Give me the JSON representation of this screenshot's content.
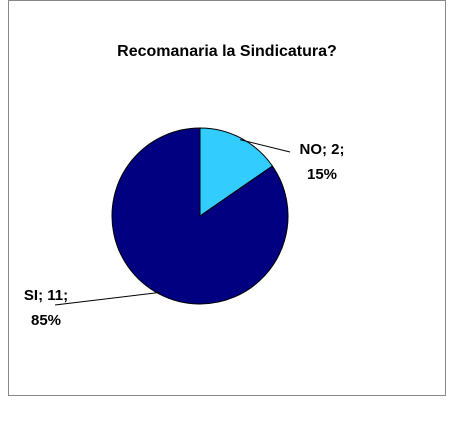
{
  "chart_data": {
    "type": "pie",
    "title": "Recomanaria la Sindicatura?",
    "values": [
      2,
      11
    ],
    "value_labels": [
      [
        "NO; 2;",
        "15%"
      ],
      [
        "SI; 11;",
        "85%"
      ]
    ],
    "colors": [
      "#33ccff",
      "#000080"
    ]
  }
}
